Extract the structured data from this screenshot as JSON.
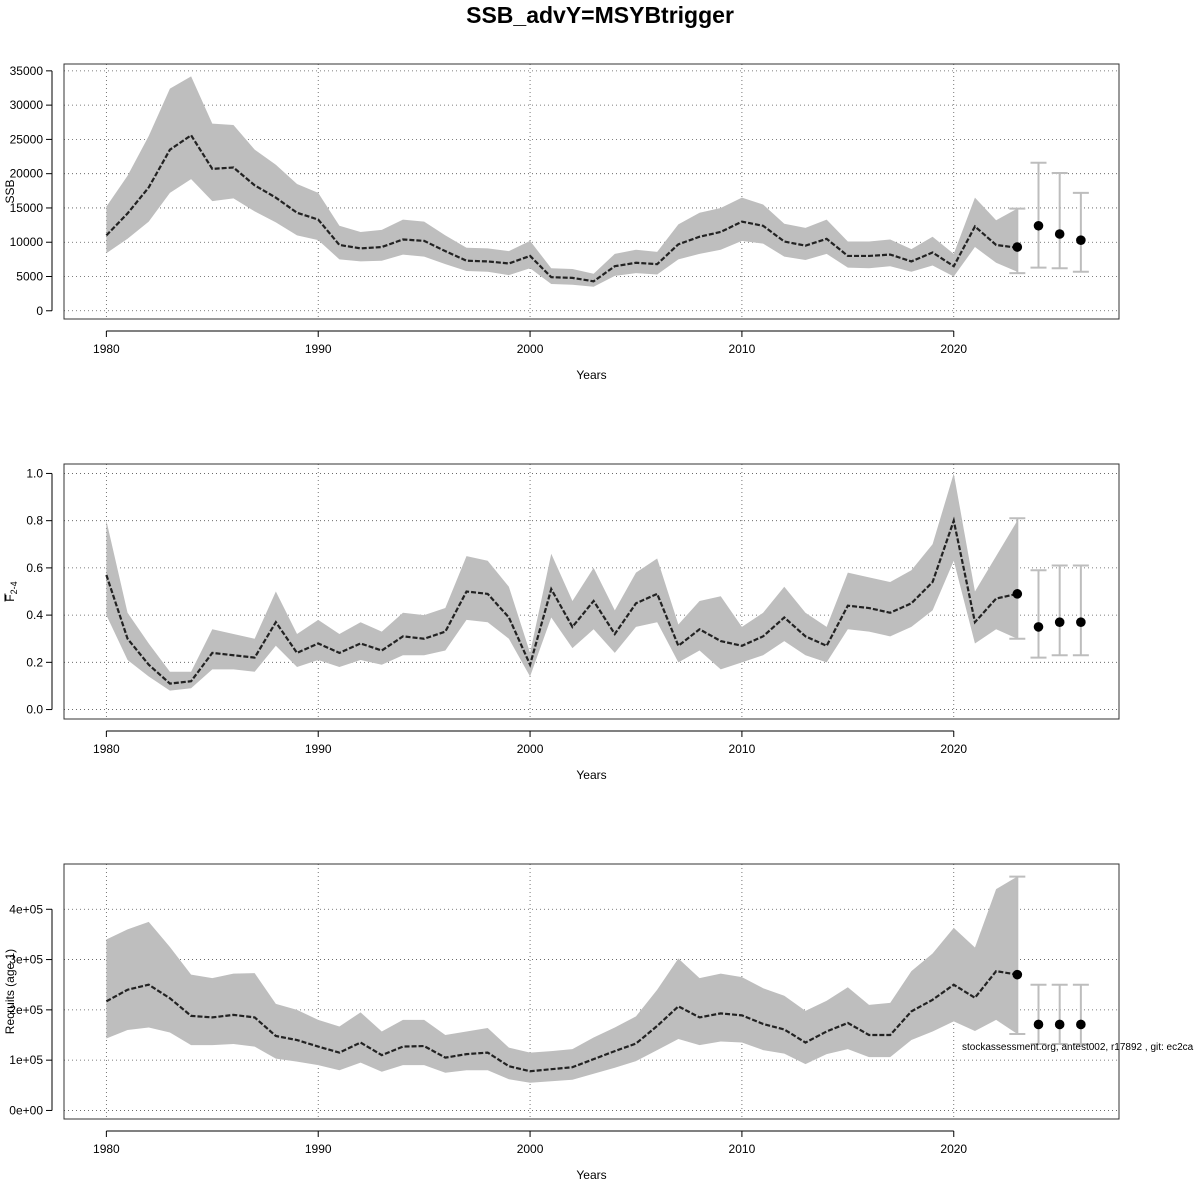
{
  "title": "SSB_advY=MSYBtrigger",
  "footer": "stockassessment.org, antest002, r17892 , git: ec2ca",
  "colors": {
    "band": "#bebebe",
    "line": "#222222",
    "points": "#000000",
    "errorbar": "#bdbdbd",
    "grid": "#555555"
  },
  "chart_data": [
    {
      "type": "line",
      "title": "",
      "xlabel": "Years",
      "ylabel": "SSB",
      "ylabel_sub": "",
      "xlim": [
        1978,
        2027.8
      ],
      "ylim": [
        -1200,
        36000
      ],
      "xticks": [
        1980,
        1990,
        2000,
        2010,
        2020
      ],
      "xtick_labels": [
        "1980",
        "1990",
        "2000",
        "2010",
        "2020"
      ],
      "yticks": [
        0,
        5000,
        10000,
        15000,
        20000,
        25000,
        30000,
        35000
      ],
      "ytick_labels": [
        "0",
        "5000",
        "10000",
        "15000",
        "20000",
        "25000",
        "30000",
        "35000"
      ],
      "grid": true,
      "series": [
        {
          "x": [
            1980,
            1981,
            1982,
            1983,
            1984,
            1985,
            1986,
            1987,
            1988,
            1989,
            1990,
            1991,
            1992,
            1993,
            1994,
            1995,
            1996,
            1997,
            1998,
            1999,
            2000,
            2001,
            2002,
            2003,
            2004,
            2005,
            2006,
            2007,
            2008,
            2009,
            2010,
            2011,
            2012,
            2013,
            2014,
            2015,
            2016,
            2017,
            2018,
            2019,
            2020,
            2021,
            2022,
            2023
          ],
          "estimate": [
            11000,
            14200,
            18000,
            23500,
            25600,
            20700,
            20900,
            18300,
            16500,
            14300,
            13300,
            9600,
            9100,
            9300,
            10400,
            10200,
            8700,
            7300,
            7200,
            6900,
            8000,
            4900,
            4800,
            4300,
            6500,
            7000,
            6800,
            9700,
            10800,
            11500,
            13000,
            12400,
            10100,
            9500,
            10500,
            8000,
            8000,
            8200,
            7200,
            8500,
            6500,
            12300,
            9600,
            9200
          ],
          "lower": [
            8400,
            10500,
            13000,
            17200,
            19200,
            16000,
            16400,
            14500,
            12900,
            11000,
            10300,
            7500,
            7200,
            7300,
            8200,
            7900,
            6800,
            5800,
            5700,
            5200,
            6200,
            3900,
            3800,
            3500,
            5100,
            5500,
            5300,
            7500,
            8300,
            8900,
            10200,
            9800,
            7900,
            7400,
            8300,
            6300,
            6200,
            6500,
            5700,
            6600,
            5000,
            9300,
            7000,
            5700
          ],
          "upper": [
            15200,
            19700,
            25500,
            32400,
            34200,
            27300,
            27100,
            23500,
            21300,
            18500,
            17200,
            12400,
            11500,
            11800,
            13300,
            13000,
            11000,
            9200,
            9100,
            8700,
            10200,
            6200,
            6100,
            5400,
            8300,
            8900,
            8600,
            12600,
            14300,
            15000,
            16500,
            15500,
            12700,
            12100,
            13300,
            10100,
            10100,
            10400,
            9000,
            10800,
            8300,
            16500,
            13200,
            14900
          ]
        }
      ],
      "forecast": {
        "x": [
          2023,
          2024,
          2025,
          2026
        ],
        "median": [
          9300,
          12400,
          11200,
          10300
        ],
        "lower": [
          5500,
          6300,
          6200,
          5700
        ],
        "upper": [
          14900,
          21600,
          20100,
          17200
        ]
      }
    },
    {
      "type": "line",
      "title": "",
      "xlabel": "Years",
      "ylabel": "F",
      "ylabel_sub": "2-4",
      "xlim": [
        1978,
        2027.8
      ],
      "ylim": [
        -0.04,
        1.04
      ],
      "xticks": [
        1980,
        1990,
        2000,
        2010,
        2020
      ],
      "xtick_labels": [
        "1980",
        "1990",
        "2000",
        "2010",
        "2020"
      ],
      "yticks": [
        0,
        0.2,
        0.4,
        0.6,
        0.8,
        1.0
      ],
      "ytick_labels": [
        "0.0",
        "0.2",
        "0.4",
        "0.6",
        "0.8",
        "1.0"
      ],
      "grid": true,
      "series": [
        {
          "x": [
            1980,
            1981,
            1982,
            1983,
            1984,
            1985,
            1986,
            1987,
            1988,
            1989,
            1990,
            1991,
            1992,
            1993,
            1994,
            1995,
            1996,
            1997,
            1998,
            1999,
            2000,
            2001,
            2002,
            2003,
            2004,
            2005,
            2006,
            2007,
            2008,
            2009,
            2010,
            2011,
            2012,
            2013,
            2014,
            2015,
            2016,
            2017,
            2018,
            2019,
            2020,
            2021,
            2022,
            2023
          ],
          "estimate": [
            0.57,
            0.3,
            0.19,
            0.11,
            0.12,
            0.24,
            0.23,
            0.22,
            0.37,
            0.24,
            0.28,
            0.24,
            0.28,
            0.25,
            0.31,
            0.3,
            0.33,
            0.5,
            0.49,
            0.39,
            0.19,
            0.51,
            0.35,
            0.46,
            0.32,
            0.45,
            0.49,
            0.27,
            0.34,
            0.29,
            0.27,
            0.31,
            0.39,
            0.31,
            0.27,
            0.44,
            0.43,
            0.41,
            0.45,
            0.54,
            0.8,
            0.37,
            0.47,
            0.49
          ],
          "lower": [
            0.4,
            0.21,
            0.14,
            0.08,
            0.09,
            0.17,
            0.17,
            0.16,
            0.27,
            0.18,
            0.21,
            0.18,
            0.21,
            0.19,
            0.23,
            0.23,
            0.25,
            0.38,
            0.37,
            0.3,
            0.14,
            0.39,
            0.26,
            0.34,
            0.24,
            0.35,
            0.37,
            0.2,
            0.25,
            0.17,
            0.2,
            0.23,
            0.29,
            0.23,
            0.2,
            0.34,
            0.33,
            0.31,
            0.35,
            0.42,
            0.63,
            0.28,
            0.34,
            0.3
          ],
          "upper": [
            0.8,
            0.41,
            0.28,
            0.16,
            0.16,
            0.34,
            0.32,
            0.3,
            0.5,
            0.32,
            0.38,
            0.32,
            0.37,
            0.33,
            0.41,
            0.4,
            0.43,
            0.65,
            0.63,
            0.52,
            0.24,
            0.66,
            0.46,
            0.6,
            0.42,
            0.58,
            0.64,
            0.36,
            0.46,
            0.48,
            0.35,
            0.41,
            0.52,
            0.41,
            0.35,
            0.58,
            0.56,
            0.54,
            0.59,
            0.7,
            1.0,
            0.5,
            0.65,
            0.8
          ]
        }
      ],
      "forecast": {
        "x": [
          2023,
          2024,
          2025,
          2026
        ],
        "median": [
          0.49,
          0.35,
          0.37,
          0.37
        ],
        "lower": [
          0.3,
          0.22,
          0.23,
          0.23
        ],
        "upper": [
          0.81,
          0.59,
          0.61,
          0.61
        ]
      }
    },
    {
      "type": "line",
      "title": "",
      "xlabel": "Years",
      "ylabel": "Recruits (age 1)",
      "ylabel_sub": "",
      "xlim": [
        1978,
        2027.8
      ],
      "ylim": [
        -17000,
        490000
      ],
      "xticks": [
        1980,
        1990,
        2000,
        2010,
        2020
      ],
      "xtick_labels": [
        "1980",
        "1990",
        "2000",
        "2010",
        "2020"
      ],
      "yticks": [
        0,
        100000,
        200000,
        300000,
        400000
      ],
      "ytick_labels": [
        "0e+00",
        "1e+05",
        "2e+05",
        "3e+05",
        "4e+05"
      ],
      "grid": true,
      "series": [
        {
          "x": [
            1980,
            1981,
            1982,
            1983,
            1984,
            1985,
            1986,
            1987,
            1988,
            1989,
            1990,
            1991,
            1992,
            1993,
            1994,
            1995,
            1996,
            1997,
            1998,
            1999,
            2000,
            2001,
            2002,
            2003,
            2004,
            2005,
            2006,
            2007,
            2008,
            2009,
            2010,
            2011,
            2012,
            2013,
            2014,
            2015,
            2016,
            2017,
            2018,
            2019,
            2020,
            2021,
            2022,
            2023
          ],
          "estimate": [
            217000,
            240000,
            250000,
            223000,
            188000,
            185000,
            190000,
            185000,
            148000,
            140000,
            127000,
            115000,
            135000,
            110000,
            127000,
            128000,
            105000,
            112000,
            115000,
            88000,
            78000,
            82000,
            86000,
            102000,
            118000,
            133000,
            168000,
            207000,
            185000,
            193000,
            189000,
            172000,
            161000,
            135000,
            157000,
            174000,
            150000,
            150000,
            197000,
            220000,
            250000,
            224000,
            277000,
            270000
          ],
          "lower": [
            143000,
            160000,
            165000,
            155000,
            130000,
            130000,
            132000,
            127000,
            103000,
            97000,
            90000,
            80000,
            95000,
            77000,
            90000,
            90000,
            75000,
            80000,
            80000,
            62000,
            55000,
            58000,
            61000,
            73000,
            85000,
            98000,
            120000,
            142000,
            130000,
            137000,
            135000,
            120000,
            113000,
            92000,
            112000,
            122000,
            106000,
            106000,
            140000,
            157000,
            177000,
            158000,
            180000,
            152000
          ],
          "upper": [
            340000,
            360000,
            375000,
            325000,
            270000,
            263000,
            272000,
            273000,
            212000,
            200000,
            180000,
            167000,
            195000,
            157000,
            180000,
            180000,
            150000,
            157000,
            164000,
            125000,
            115000,
            118000,
            122000,
            145000,
            165000,
            187000,
            240000,
            302000,
            263000,
            272000,
            265000,
            243000,
            228000,
            198000,
            218000,
            245000,
            210000,
            214000,
            277000,
            312000,
            363000,
            324000,
            440000,
            465000
          ]
        }
      ],
      "forecast": {
        "x": [
          2023,
          2024,
          2025,
          2026
        ],
        "median": [
          270000,
          171000,
          171000,
          171000
        ],
        "lower": [
          152000,
          132000,
          132000,
          132000
        ],
        "upper": [
          465000,
          250000,
          250000,
          250000
        ]
      }
    }
  ]
}
